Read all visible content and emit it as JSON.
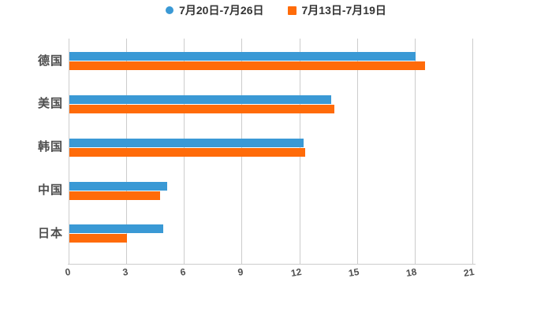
{
  "chart_data": {
    "type": "bar",
    "orientation": "horizontal",
    "title": "",
    "xlabel": "",
    "ylabel": "",
    "categories": [
      "德国",
      "美国",
      "韩国",
      "中国",
      "日本"
    ],
    "series": [
      {
        "name": "7月20日-7月26日",
        "color": "#3a99d5",
        "marker": "circle",
        "values": [
          18,
          13.6,
          12.2,
          5.1,
          4.9
        ]
      },
      {
        "name": "7月13日-7月19日",
        "color": "#ff6b09",
        "marker": "square",
        "values": [
          18.5,
          13.8,
          12.25,
          4.7,
          3
        ]
      }
    ],
    "xlim": [
      0,
      21
    ],
    "x_ticks": [
      0,
      3,
      6,
      9,
      12,
      15,
      18,
      21
    ],
    "grid": true,
    "legend_position": "top-center"
  },
  "colors": {
    "background": "#ffffff",
    "gridline": "#cccccc",
    "axis_label": "#4d4d4d",
    "legend_text": "#333333",
    "series_blue": "#3a99d5",
    "series_orange": "#ff6b09"
  }
}
